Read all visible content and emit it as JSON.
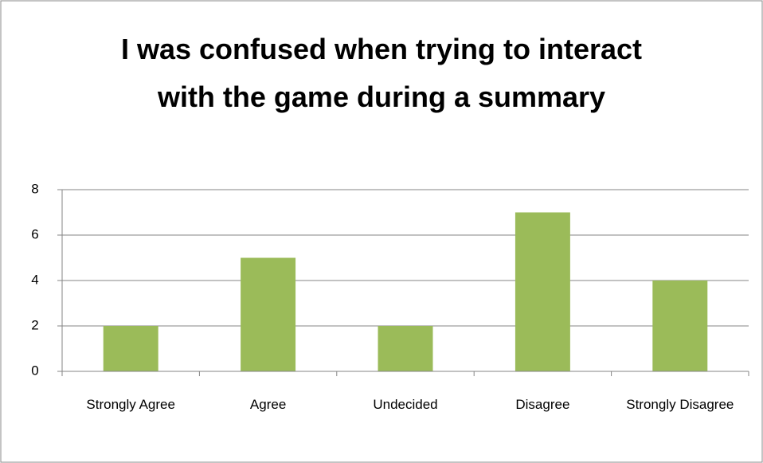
{
  "chart_data": {
    "type": "bar",
    "title": "I was confused when trying to interact with the game during a summary",
    "categories": [
      "Strongly Agree",
      "Agree",
      "Undecided",
      "Disagree",
      "Strongly Disagree"
    ],
    "values": [
      2,
      5,
      2,
      7,
      4
    ],
    "color": "#9bbb59",
    "ylim": [
      0,
      8
    ],
    "yticks": [
      0,
      2,
      4,
      6,
      8
    ],
    "grid": true
  }
}
